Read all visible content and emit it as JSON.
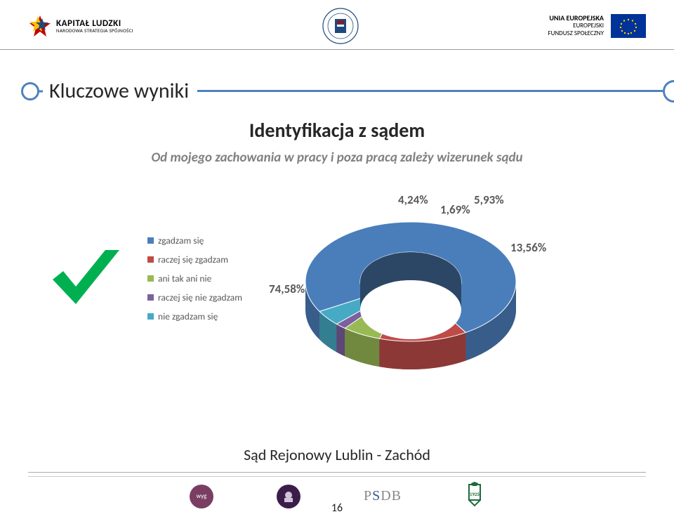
{
  "header": {
    "kl_top": "KAPITAŁ LUDZKI",
    "kl_bottom": "NARODOWA STRATEGIA SPÓJNOŚCI",
    "eu_line1": "UNIA EUROPEJSKA",
    "eu_line2": "EUROPEJSKI",
    "eu_line3": "FUNDUSZ SPOŁECZNY"
  },
  "title": "Kluczowe wyniki",
  "subtitle": "Identyfikacja z sądem",
  "question": "Od mojego zachowania w pracy i poza pracą zależy wizerunek sądu",
  "legend": {
    "items": [
      {
        "label": "zgadzam się",
        "color": "#4a7ebb"
      },
      {
        "label": "raczej się zgadzam",
        "color": "#be4b48"
      },
      {
        "label": "ani tak ani nie",
        "color": "#98b954"
      },
      {
        "label": "raczej się nie zgadzam",
        "color": "#7d60a0"
      },
      {
        "label": "nie zgadzam się",
        "color": "#46aac5"
      }
    ]
  },
  "chart": {
    "type": "donut3d",
    "slices": [
      {
        "label": "74,58%",
        "value": 74.58,
        "color_top": "#4a7ebb",
        "color_side": "#385d8a"
      },
      {
        "label": "13,56%",
        "value": 13.56,
        "color_top": "#be4b48",
        "color_side": "#8c3836"
      },
      {
        "label": "5,93%",
        "value": 5.93,
        "color_top": "#98b954",
        "color_side": "#71893f"
      },
      {
        "label": "1,69%",
        "value": 1.69,
        "color_top": "#7d60a0",
        "color_side": "#5c4776"
      },
      {
        "label": "4,24%",
        "value": 4.24,
        "color_top": "#46aac5",
        "color_side": "#347e92"
      }
    ],
    "hole_color": "#ffffff",
    "label_fontsize": 17,
    "label_color": "#595959"
  },
  "footer": {
    "court": "Sąd Rejonowy Lublin - Zachód",
    "page": "16"
  },
  "colors": {
    "accent": "#4f81bd",
    "check": "#00b050"
  }
}
